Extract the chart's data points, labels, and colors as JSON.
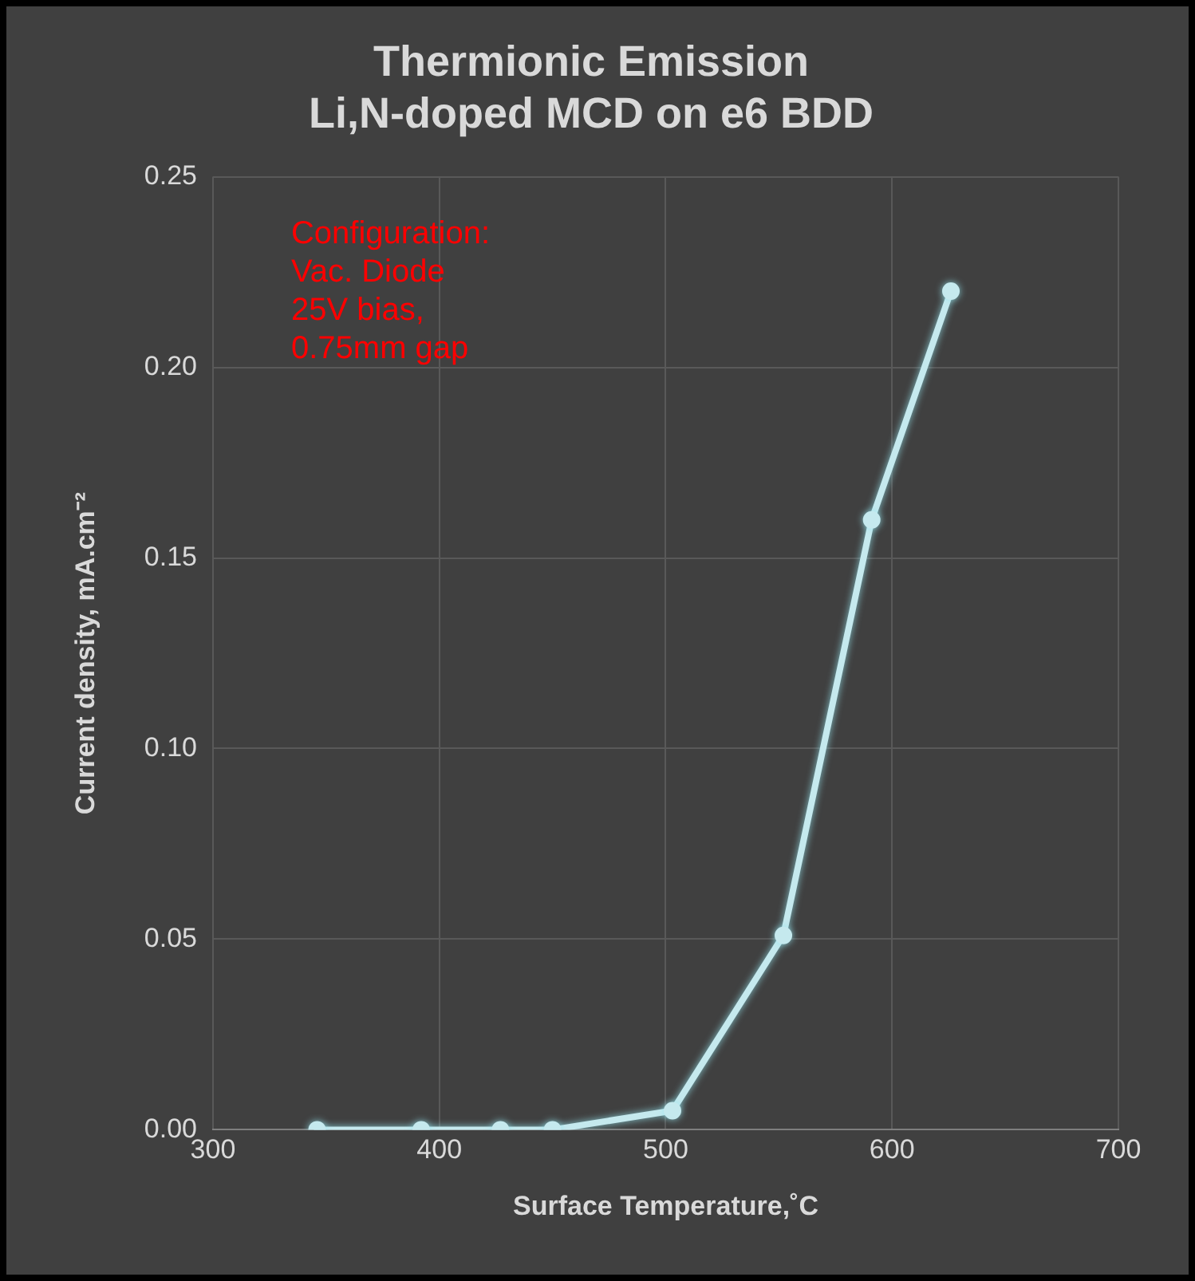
{
  "chart_data": {
    "type": "line",
    "title": "Thermionic Emission\nLi,N-doped MCD on e6 BDD",
    "xlabel": "Surface Temperature,˚C",
    "ylabel": "Current density, mA.cm⁻²",
    "x": [
      346,
      392,
      427,
      450,
      503,
      552,
      591,
      626
    ],
    "series": [
      {
        "color": "#c5e9ee",
        "values": [
          0,
          0,
          0,
          0,
          0.005,
          0.051,
          0.16,
          0.22
        ]
      }
    ],
    "xlim": [
      300,
      700
    ],
    "xticks": [
      300,
      400,
      500,
      600,
      700
    ],
    "ylim": [
      0,
      0.25
    ],
    "yticks": [
      {
        "value": 0,
        "label": "0.00"
      },
      {
        "value": 0.05,
        "label": "0.05"
      },
      {
        "value": 0.1,
        "label": "0.10"
      },
      {
        "value": 0.15,
        "label": "0.15"
      },
      {
        "value": 0.2,
        "label": "0.20"
      },
      {
        "value": 0.25,
        "label": "0.25"
      }
    ],
    "grid": true,
    "legend": false,
    "marker": "circle",
    "line_style": "solid",
    "annotations": [
      "Configuration:\nVac. Diode\n25V bias,\n0.75mm gap"
    ]
  }
}
